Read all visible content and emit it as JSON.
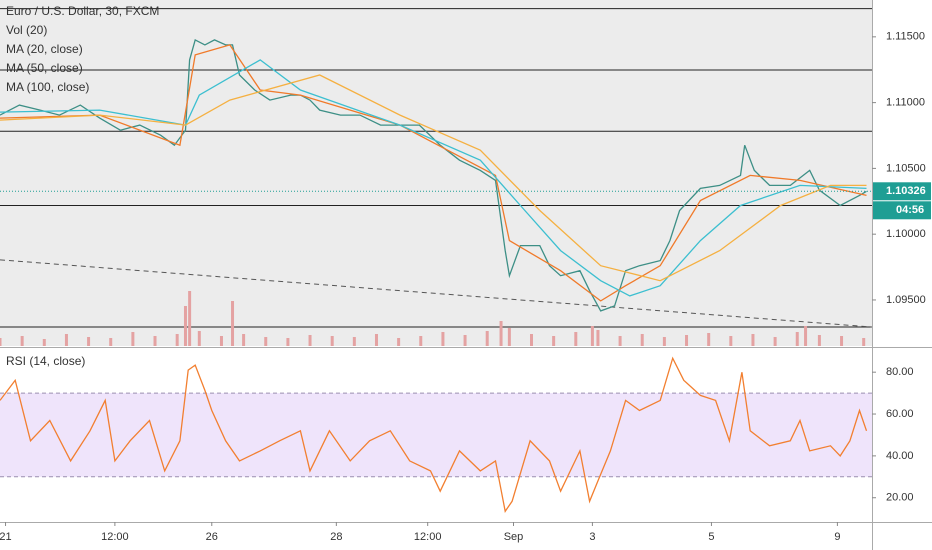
{
  "chart_data": [
    {
      "type": "line",
      "title": "Euro / U.S. Dollar, 30, FXCM",
      "xlim": [
        0,
        630
      ],
      "ylim": [
        1.0915,
        1.1178
      ],
      "yticks": [
        {
          "value": 1.115,
          "label": "1.11500"
        },
        {
          "value": 1.11,
          "label": "1.11000"
        },
        {
          "value": 1.105,
          "label": "1.10500"
        },
        {
          "value": 1.1,
          "label": "1.10000"
        },
        {
          "value": 1.095,
          "label": "1.09500"
        }
      ],
      "series": [
        {
          "color": "#3d8f86",
          "x": [
            0,
            14,
            29,
            43,
            58,
            72,
            87,
            101,
            116,
            126,
            134,
            137,
            141,
            148,
            155,
            163,
            168,
            173,
            184,
            195,
            210,
            217,
            224,
            231,
            246,
            260,
            275,
            289,
            303,
            318,
            332,
            347,
            358,
            365,
            368,
            376,
            390,
            397,
            405,
            419,
            426,
            434,
            444,
            452,
            462,
            477,
            484,
            491,
            506,
            520,
            535,
            538,
            545,
            556,
            571,
            585,
            592,
            607,
            621,
            626
          ],
          "values": [
            1.10905,
            1.10981,
            1.10943,
            1.10905,
            1.10981,
            1.10882,
            1.1079,
            1.10829,
            1.10752,
            1.10676,
            1.1079,
            1.11325,
            1.11477,
            1.11439,
            1.11477,
            1.11439,
            1.11439,
            1.1121,
            1.11096,
            1.11019,
            1.11057,
            1.11057,
            1.11019,
            1.10943,
            1.10905,
            1.10905,
            1.10829,
            1.10829,
            1.10829,
            1.10676,
            1.10562,
            1.10485,
            1.10409,
            1.09875,
            1.09684,
            1.09913,
            1.09913,
            1.0976,
            1.09684,
            1.09722,
            1.0957,
            1.09417,
            1.09455,
            1.09722,
            1.0976,
            1.09799,
            1.09951,
            1.1018,
            1.10348,
            1.10371,
            1.10447,
            1.10676,
            1.10485,
            1.10371,
            1.10371,
            1.10485,
            1.10334,
            1.10218,
            1.10295,
            1.10326
          ]
        },
        {
          "name": "MA (20, close)",
          "color": "#f07a2a",
          "x": [
            0,
            72,
            130,
            141,
            166,
            188,
            217,
            289,
            358,
            368,
            405,
            434,
            452,
            477,
            506,
            542,
            578,
            626
          ],
          "values": [
            1.10882,
            1.10905,
            1.10676,
            1.11363,
            1.11439,
            1.11096,
            1.11057,
            1.10829,
            1.10447,
            1.09951,
            1.09722,
            1.09493,
            1.09608,
            1.0976,
            1.10256,
            1.10447,
            1.10409,
            1.10295
          ]
        },
        {
          "name": "MA (50, close)",
          "color": "#3cbfd0",
          "x": [
            0,
            72,
            134,
            144,
            188,
            217,
            289,
            347,
            376,
            405,
            434,
            455,
            477,
            506,
            535,
            578,
            626
          ],
          "values": [
            1.10928,
            1.10943,
            1.10829,
            1.11057,
            1.11325,
            1.11096,
            1.10829,
            1.10562,
            1.10218,
            1.09875,
            1.09646,
            1.09531,
            1.09608,
            1.09951,
            1.10218,
            1.10371,
            1.10348
          ]
        },
        {
          "name": "MA (100, close)",
          "color": "#f5b041",
          "x": [
            0,
            72,
            134,
            166,
            231,
            289,
            347,
            390,
            434,
            477,
            520,
            564,
            600,
            626
          ],
          "values": [
            1.10867,
            1.10905,
            1.10829,
            1.11019,
            1.1121,
            1.10905,
            1.10638,
            1.1018,
            1.0976,
            1.09646,
            1.09875,
            1.10218,
            1.10371,
            1.10371
          ]
        }
      ],
      "volume": {
        "name": "Vol (20)",
        "color": "#e4a2a2",
        "ylim": [
          0,
          100
        ],
        "x": [
          0,
          16,
          32,
          48,
          64,
          80,
          96,
          112,
          128,
          134,
          137,
          144,
          160,
          168,
          176,
          192,
          208,
          224,
          240,
          256,
          272,
          288,
          304,
          320,
          336,
          352,
          362,
          368,
          384,
          400,
          416,
          428,
          432,
          448,
          464,
          480,
          496,
          512,
          528,
          544,
          560,
          576,
          582,
          592,
          608,
          624
        ],
        "values": [
          8,
          10,
          7,
          12,
          9,
          8,
          14,
          10,
          12,
          40,
          55,
          15,
          10,
          45,
          12,
          9,
          8,
          11,
          10,
          9,
          12,
          8,
          10,
          14,
          11,
          15,
          25,
          18,
          12,
          10,
          14,
          20,
          16,
          10,
          12,
          9,
          11,
          13,
          10,
          12,
          9,
          14,
          20,
          11,
          10,
          8
        ]
      },
      "levels": [
        1.11714,
        1.11248,
        1.10782,
        1.10218,
        1.09294
      ],
      "trendline": {
        "x": [
          0,
          630
        ],
        "values": [
          1.09805,
          1.09294
        ]
      },
      "last_price": 1.10326,
      "countdown": "04:56"
    },
    {
      "type": "line",
      "title": "RSI (14, close)",
      "xlim": [
        0,
        630
      ],
      "ylim": [
        8.4,
        90.6
      ],
      "yticks": [
        {
          "value": 80,
          "label": "80.00"
        },
        {
          "value": 60,
          "label": "60.00"
        },
        {
          "value": 40,
          "label": "40.00"
        },
        {
          "value": 20,
          "label": "20.00"
        }
      ],
      "band": [
        30,
        70
      ],
      "xticks": [
        {
          "value": 4,
          "label": "21"
        },
        {
          "value": 83,
          "label": "12:00"
        },
        {
          "value": 153,
          "label": "26"
        },
        {
          "value": 243,
          "label": "28"
        },
        {
          "value": 309,
          "label": "12:00"
        },
        {
          "value": 371,
          "label": "Sep"
        },
        {
          "value": 428,
          "label": "3"
        },
        {
          "value": 514,
          "label": "5"
        },
        {
          "value": 605,
          "label": "9"
        }
      ],
      "series": [
        {
          "color": "#f27f30",
          "x": [
            0,
            11,
            22,
            36,
            51,
            65,
            76,
            83,
            94,
            108,
            119,
            130,
            136,
            141,
            148,
            153,
            163,
            173,
            188,
            202,
            217,
            224,
            238,
            253,
            267,
            282,
            296,
            311,
            318,
            332,
            347,
            358,
            365,
            370,
            383,
            397,
            405,
            419,
            426,
            432,
            441,
            452,
            462,
            477,
            486,
            494,
            506,
            517,
            527,
            536,
            542,
            556,
            571,
            578,
            585,
            600,
            607,
            614,
            621,
            626
          ],
          "values": [
            66.5,
            76.1,
            47.2,
            56.9,
            37.6,
            52,
            66.5,
            37.6,
            47.2,
            56.9,
            32.8,
            47.2,
            81,
            83.4,
            71.3,
            61.7,
            47.2,
            37.6,
            42.4,
            47.2,
            52,
            32.8,
            52,
            37.6,
            47.2,
            52,
            37.6,
            32.8,
            23.1,
            42.4,
            32.8,
            37.6,
            13.5,
            18.3,
            47.2,
            37.6,
            23.1,
            42.4,
            18.3,
            28,
            42.4,
            66.5,
            61.7,
            66.5,
            86.7,
            76.1,
            68.9,
            66.5,
            47.2,
            80,
            52,
            44.8,
            47.2,
            56.9,
            42.4,
            44.8,
            40,
            47.2,
            61.7,
            52
          ]
        }
      ]
    }
  ]
}
